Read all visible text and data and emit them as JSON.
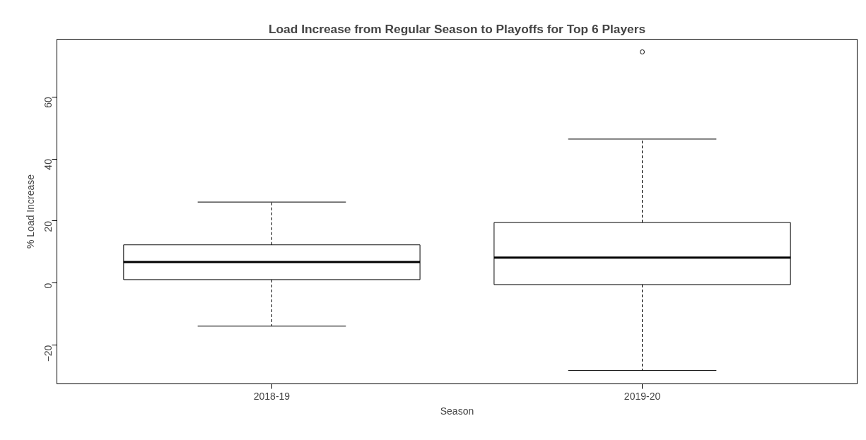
{
  "chart_data": {
    "type": "box",
    "title": "Load Increase from Regular Season to Playoffs for Top 6 Players",
    "xlabel": "Season",
    "ylabel": "% Load Increase",
    "categories": [
      "2018-19",
      "2019-20"
    ],
    "boxes": [
      {
        "low": -13.9,
        "q1": 1.1,
        "median": 6.8,
        "q3": 12.3,
        "high": 26.1
      },
      {
        "low": -28.2,
        "q1": -0.5,
        "median": 8.2,
        "q3": 19.5,
        "high": 46.4,
        "outliers": [
          74.5
        ]
      }
    ],
    "ylim": [
      -32.5,
      78.6
    ],
    "yticks": [
      -20,
      0,
      20,
      40,
      60
    ],
    "grid": false
  }
}
